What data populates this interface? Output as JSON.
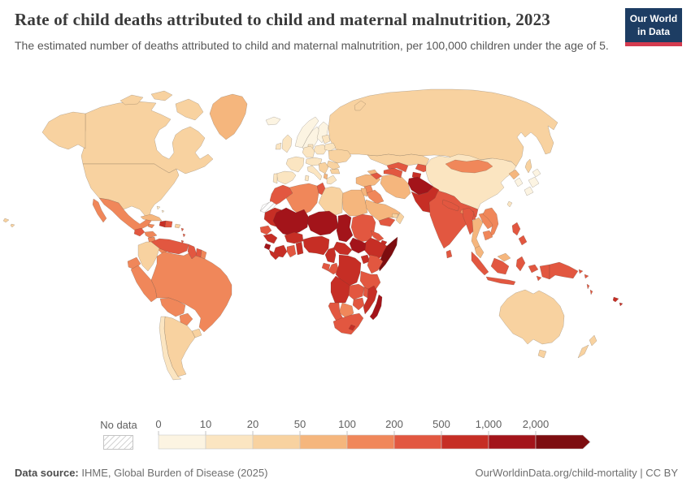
{
  "header": {
    "title": "Rate of child deaths attributed to child and maternal malnutrition, 2023",
    "subtitle": "The estimated number of deaths attributed to child and maternal malnutrition, per 100,000 children under the age of 5.",
    "logo_line1": "Our World",
    "logo_line2": "in Data"
  },
  "legend": {
    "no_data_label": "No data",
    "tick_labels": [
      "0",
      "10",
      "20",
      "50",
      "100",
      "200",
      "500",
      "1,000",
      "2,000"
    ]
  },
  "footer": {
    "source_label": "Data source:",
    "source_text": " IHME, Global Burden of Disease (2025)",
    "link_text": "OurWorldinData.org/child-mortality",
    "separator": " | ",
    "license_text": "CC BY"
  },
  "chart_data": {
    "type": "choropleth_map",
    "title": "Rate of child deaths attributed to child and maternal malnutrition, 2023",
    "year": 2023,
    "unit": "deaths per 100,000 children under age 5",
    "legend_bins": [
      "0-10",
      "10-20",
      "20-50",
      "50-100",
      "100-200",
      "200-500",
      "500-1,000",
      "1,000-2,000",
      "2,000+"
    ],
    "bin_colors": [
      "#FCF4E2",
      "#FBE5C1",
      "#F8D2A0",
      "#F5B67D",
      "#F0875A",
      "#E25740",
      "#C62E25",
      "#A3141A",
      "#7D0D10"
    ],
    "no_data_style": "diagonal-hatch",
    "country_bins": {
      "canada": 2,
      "usa": 2,
      "greenland": 3,
      "mexico": 4,
      "guatemala": 5,
      "honduras": 4,
      "nicaragua": 4,
      "costarica": 3,
      "panama": 4,
      "cuba": 3,
      "jamaica": 4,
      "haiti": 6,
      "dominicanrep": 5,
      "puertorico": 2,
      "bahamas": 1,
      "lesserantilles": 5,
      "colombia": 2,
      "venezuela": 5,
      "guyana": 5,
      "suriname": 5,
      "frenchguiana": 4,
      "ecuador": 4,
      "peru": 4,
      "brazil": 4,
      "bolivia": 4,
      "paraguay": 4,
      "uruguay": 2,
      "argentina": 2,
      "chile": 1,
      "iceland": 0,
      "norway": 0,
      "sweden": 0,
      "finland": 0,
      "denmark": 1,
      "uk": 1,
      "ireland": 1,
      "france": 1,
      "spain": 1,
      "portugal": 1,
      "germany": 1,
      "centraleurope": 1,
      "poland": 1,
      "italy": 1,
      "sardinia": 1,
      "balkans": 2,
      "albania": 3,
      "greece": 1,
      "romania": 2,
      "bulgaria": 2,
      "baltics": 1,
      "belarus": 1,
      "ukraine": 2,
      "russia": 2,
      "turkey": 3,
      "georgia": 3,
      "azerbaijan": 5,
      "syria": 4,
      "iraq": 4,
      "jordan": 3,
      "saudiarabia": 3,
      "yemen": 5,
      "oman": 2,
      "uae": 2,
      "iran": 3,
      "turkmenistan": 5,
      "uzbekistan": 5,
      "kazakhstan": 2,
      "kyrgyzstan": 5,
      "tajikistan": 6,
      "afghanistan": 7,
      "pakistan": 6,
      "india": 5,
      "nepal": 5,
      "bhutan": 4,
      "bangladesh": 5,
      "srilanka": 5,
      "china": 1,
      "mongolia": 4,
      "northkorea": 3,
      "southkorea": 0,
      "japan": 0,
      "taiwan": 1,
      "myanmar": 5,
      "thailand": 3,
      "laos": 4,
      "vietnam": 4,
      "cambodia": 4,
      "malaysia": 3,
      "indonesia": 5,
      "philippines": 5,
      "papuanewguinea": 5,
      "solomonislands": 5,
      "vanuatu": 5,
      "fiji": 6,
      "australia": 2,
      "newzealand": 2,
      "morocco": 5,
      "westernsahara": "nodata",
      "algeria": 4,
      "tunisia": 5,
      "libya": 2,
      "egypt": 3,
      "mauritania": 6,
      "senegal": 5,
      "guinea": 6,
      "sierraleone": 7,
      "liberia": 6,
      "cotedivoire": 6,
      "ghana": 5,
      "togobenin": 6,
      "burkinafaso": 6,
      "mali": 7,
      "niger": 7,
      "nigeria": 6,
      "chad": 7,
      "sudan": 5,
      "eritrea": 5,
      "djibouti": 6,
      "ethiopia": 6,
      "somalia": 8,
      "southsudan": 7,
      "car": 6,
      "cameroon": 6,
      "gabon": 5,
      "congo": 5,
      "drc": 6,
      "uganda": 6,
      "kenya": 5,
      "tanzania": 5,
      "angola": 6,
      "zambia": 5,
      "malawi": 5,
      "mozambique": 6,
      "zimbabwe": 5,
      "botswana": 4,
      "namibia": 5,
      "southafrica": 5,
      "lesotho": 6,
      "madagascar": 7
    }
  }
}
